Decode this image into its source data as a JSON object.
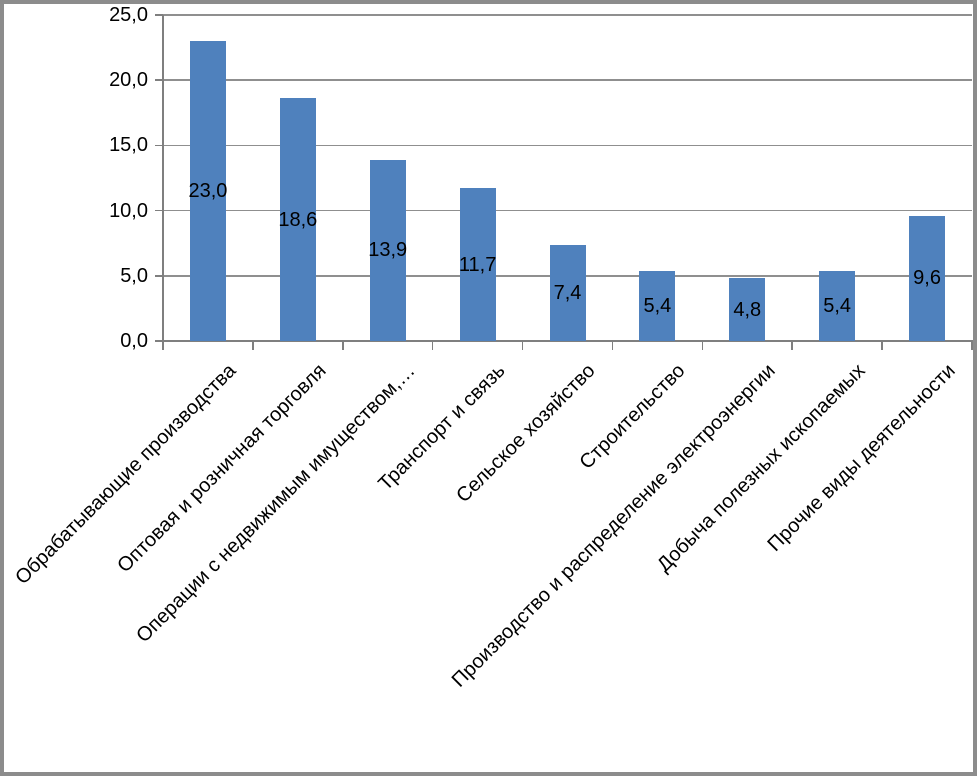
{
  "window": {
    "background": "#ffffff",
    "frame_color": "#8c8c8c"
  },
  "chart_data": {
    "type": "bar",
    "title": "",
    "xlabel": "",
    "ylabel": "",
    "categories": [
      "Обрабатывающие производства",
      "Оптовая и розничная торговля",
      "Операции с недвижимым имуществом,…",
      "Транспорт и связь",
      "Сельское хозяйство",
      "Строительство",
      "Производство и распределение электроэнергии",
      "Добыча полезных ископаемых",
      "Прочие виды деятельности"
    ],
    "values": [
      23.0,
      18.6,
      13.9,
      11.7,
      7.4,
      5.4,
      4.8,
      5.4,
      9.6
    ],
    "value_labels": [
      "23,0",
      "18,6",
      "13,9",
      "11,7",
      "7,4",
      "5,4",
      "4,8",
      "5,4",
      "9,6"
    ],
    "y_ticks": {
      "values": [
        0,
        5,
        10,
        15,
        20,
        25
      ],
      "labels": [
        "0,0",
        "5,0",
        "10,0",
        "15,0",
        "20,0",
        "25,0"
      ]
    },
    "ylim": [
      0,
      25
    ],
    "grid": true,
    "legend": "none",
    "value_label_position": "center-inside",
    "category_label_rotation_deg": 45,
    "decimal_separator": ",",
    "bar_color": "#4f81bd",
    "gridline_color": "#8f8f8f",
    "axis_color": "#7f7f7f",
    "text_color": "#000000"
  }
}
